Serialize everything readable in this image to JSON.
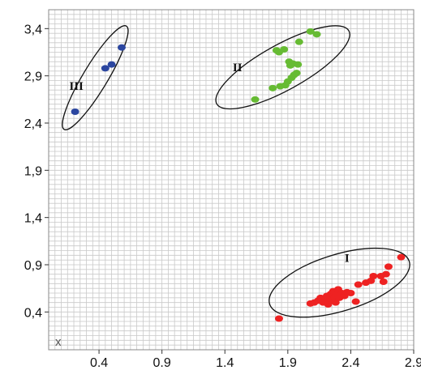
{
  "chart_data": {
    "type": "scatter",
    "xlim": [
      0.0,
      2.9
    ],
    "ylim": [
      0.0,
      3.6
    ],
    "x_ticks": [
      "0.4",
      "0.9",
      "1.4",
      "1.9",
      "2.4",
      "2.9"
    ],
    "y_ticks": [
      "3,4",
      "2,9",
      "2,4",
      "1,9",
      "1,4",
      "0,9",
      "0,4"
    ],
    "grid": true,
    "marker_text": "x",
    "colors": {
      "I": "#ee2222",
      "II": "#66bb33",
      "III": "#2b46a0",
      "grid": "#c9c9c9",
      "ellipse": "#111111"
    },
    "series": [
      {
        "name": "I",
        "points": [
          [
            1.83,
            0.33
          ],
          [
            2.08,
            0.49
          ],
          [
            2.11,
            0.5
          ],
          [
            2.14,
            0.52
          ],
          [
            2.16,
            0.55
          ],
          [
            2.18,
            0.5
          ],
          [
            2.2,
            0.54
          ],
          [
            2.21,
            0.57
          ],
          [
            2.22,
            0.48
          ],
          [
            2.23,
            0.51
          ],
          [
            2.24,
            0.59
          ],
          [
            2.25,
            0.53
          ],
          [
            2.26,
            0.62
          ],
          [
            2.27,
            0.56
          ],
          [
            2.28,
            0.5
          ],
          [
            2.29,
            0.6
          ],
          [
            2.3,
            0.64
          ],
          [
            2.31,
            0.55
          ],
          [
            2.32,
            0.58
          ],
          [
            2.33,
            0.6
          ],
          [
            2.35,
            0.57
          ],
          [
            2.37,
            0.61
          ],
          [
            2.4,
            0.6
          ],
          [
            2.44,
            0.51
          ],
          [
            2.46,
            0.69
          ],
          [
            2.52,
            0.71
          ],
          [
            2.56,
            0.73
          ],
          [
            2.58,
            0.78
          ],
          [
            2.64,
            0.78
          ],
          [
            2.66,
            0.72
          ],
          [
            2.68,
            0.8
          ],
          [
            2.7,
            0.88
          ],
          [
            2.8,
            0.98
          ]
        ]
      },
      {
        "name": "II",
        "points": [
          [
            1.64,
            2.65
          ],
          [
            1.78,
            2.77
          ],
          [
            1.81,
            3.17
          ],
          [
            1.83,
            3.15
          ],
          [
            1.84,
            2.79
          ],
          [
            1.87,
            3.18
          ],
          [
            1.88,
            2.8
          ],
          [
            1.9,
            2.84
          ],
          [
            1.91,
            3.05
          ],
          [
            1.92,
            3.01
          ],
          [
            1.93,
            2.88
          ],
          [
            1.94,
            3.03
          ],
          [
            1.95,
            2.91
          ],
          [
            1.97,
            2.93
          ],
          [
            1.98,
            3.02
          ],
          [
            1.99,
            3.26
          ],
          [
            2.08,
            3.37
          ],
          [
            2.13,
            3.34
          ]
        ]
      },
      {
        "name": "III",
        "points": [
          [
            0.21,
            2.52
          ],
          [
            0.45,
            2.98
          ],
          [
            0.5,
            3.02
          ],
          [
            0.58,
            3.2
          ]
        ]
      }
    ],
    "clusters": [
      {
        "label": "I",
        "cx": 2.31,
        "cy": 0.71,
        "rx": 0.58,
        "ry": 0.3,
        "angle_deg": 17
      },
      {
        "label": "II",
        "cx": 1.86,
        "cy": 2.99,
        "rx": 0.6,
        "ry": 0.24,
        "angle_deg": 29
      },
      {
        "label": "III",
        "cx": 0.37,
        "cy": 2.88,
        "rx": 0.48,
        "ry": 0.13,
        "angle_deg": 59
      }
    ]
  }
}
